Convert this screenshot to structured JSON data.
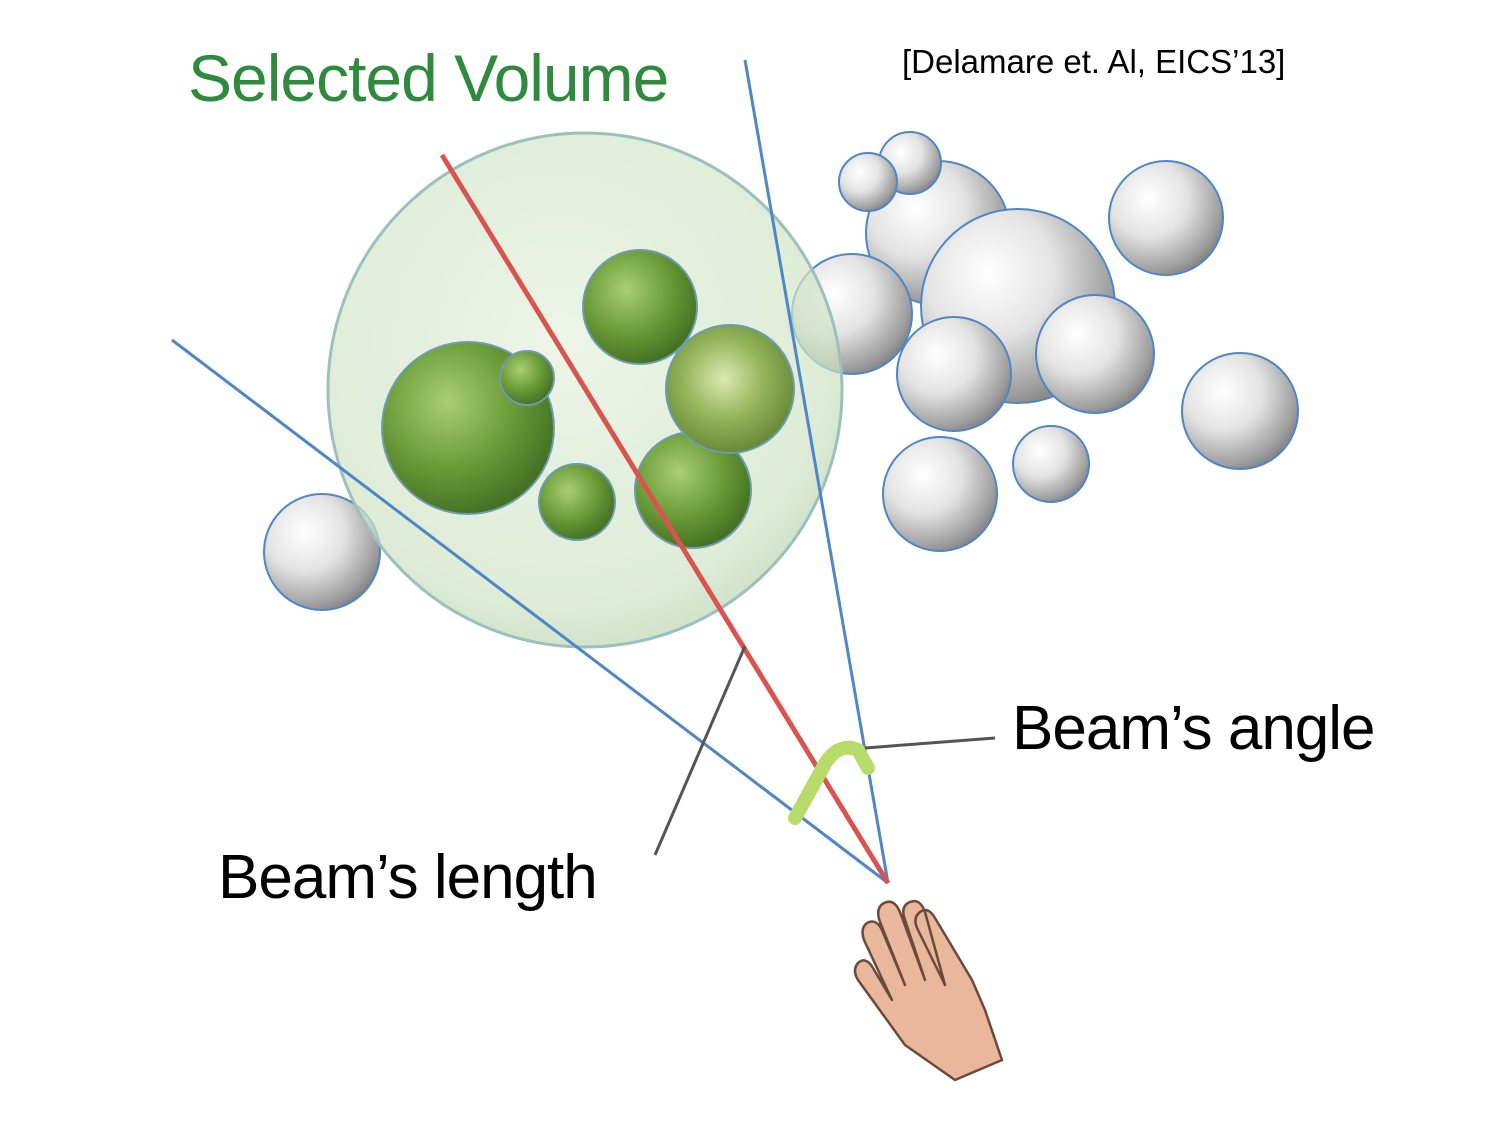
{
  "title": "Selected Volume",
  "citation": "[Delamare et. Al, EICS’13]",
  "callouts": {
    "beam_angle": "Beam’s angle",
    "beam_length": "Beam’s length"
  },
  "colors": {
    "title": "#2e8b3e",
    "selected_sphere": "#6a9a3a",
    "unselected_sphere": "#c8c8c8",
    "selection_volume": "#d7ead0",
    "beam_edges": "#4f86c6",
    "beam_axis": "#d9534f",
    "angle_marker": "#b7dc6a",
    "leader_lines": "#555555",
    "hand": "#e9b89c"
  },
  "icons": [
    "hand-icon"
  ]
}
